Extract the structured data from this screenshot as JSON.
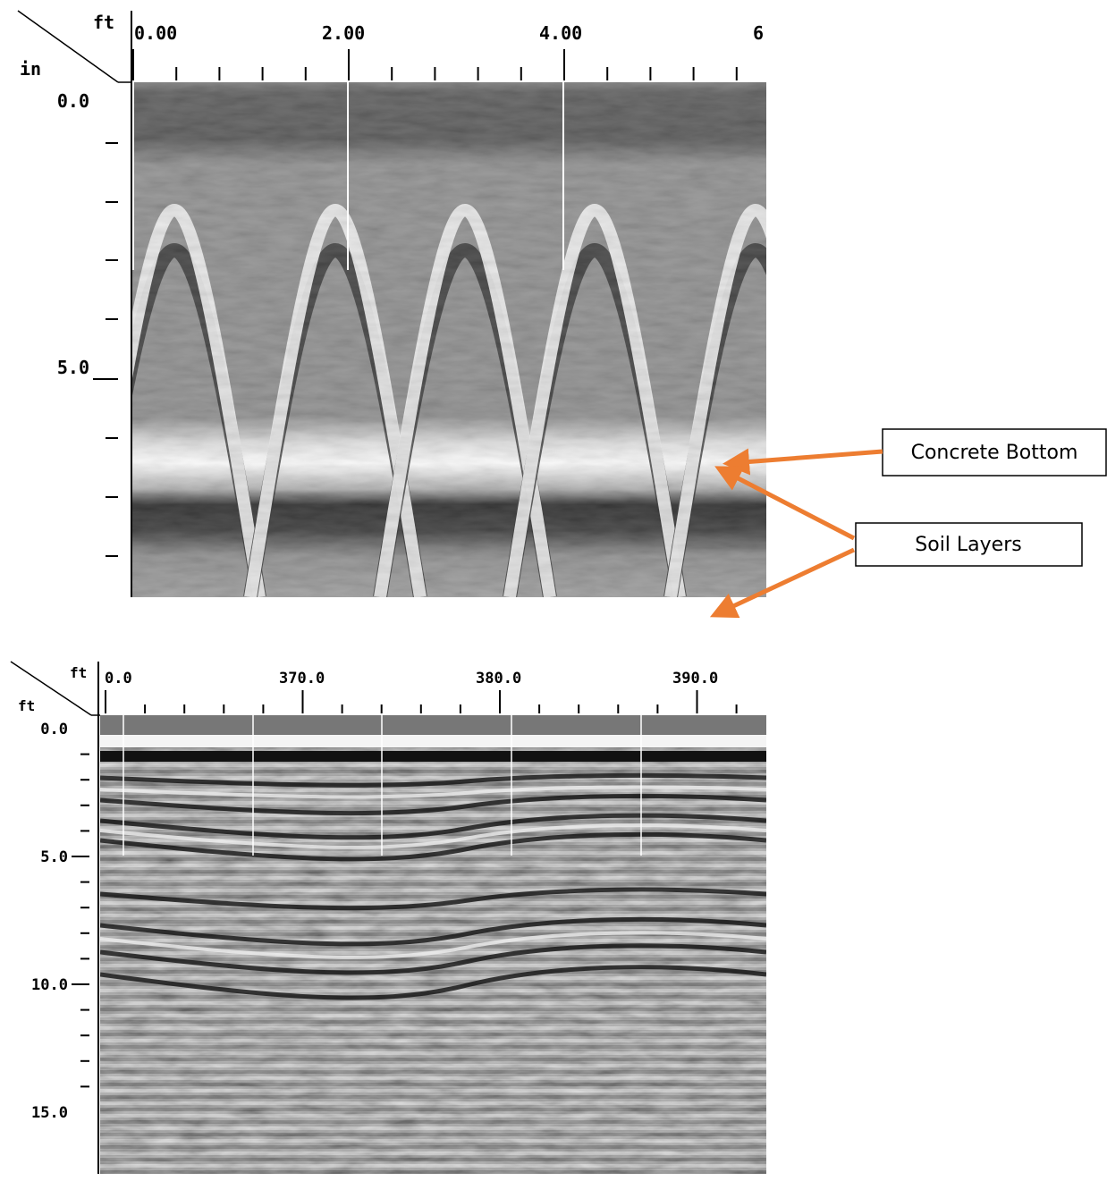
{
  "panels": [
    {
      "x_unit": "ft",
      "y_unit": "in",
      "x_labels": [
        "0.00",
        "2.00",
        "4.00",
        "6"
      ],
      "y_labels": [
        "0.0",
        "5.0"
      ],
      "callout": "Concrete Bottom"
    },
    {
      "x_unit": "ft",
      "y_unit": "ft",
      "x_labels": [
        "0.0",
        "370.0",
        "380.0",
        "390.0"
      ],
      "y_labels": [
        "0.0",
        "5.0",
        "10.0",
        "15.0"
      ],
      "callout": "Soil Layers"
    }
  ]
}
